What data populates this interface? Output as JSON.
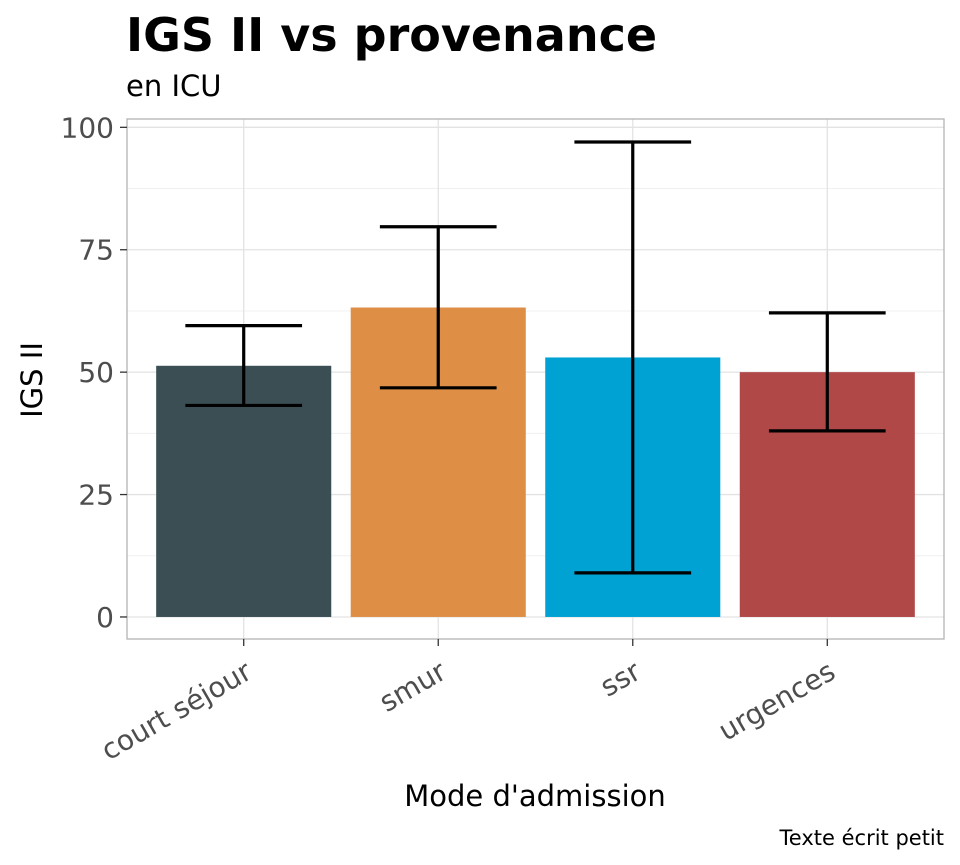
{
  "chart_data": {
    "type": "bar",
    "title": "IGS II vs provenance",
    "subtitle": "en ICU",
    "xlabel": "Mode d'admission",
    "ylabel": "IGS II",
    "caption": "Texte écrit petit",
    "categories": [
      "court séjour",
      "smur",
      "ssr",
      "urgences"
    ],
    "values": [
      51.3,
      63.2,
      53.0,
      50.0
    ],
    "error_low": [
      43.2,
      46.8,
      9.0,
      38.0
    ],
    "error_high": [
      59.5,
      79.7,
      97.0,
      62.1
    ],
    "colors": [
      "#3a4e54",
      "#de8f45",
      "#00a2d3",
      "#b04848"
    ],
    "y_ticks": [
      0,
      25,
      50,
      75,
      100
    ],
    "ylim": [
      -4.5,
      101.7
    ],
    "grid": true,
    "legend": "none"
  }
}
